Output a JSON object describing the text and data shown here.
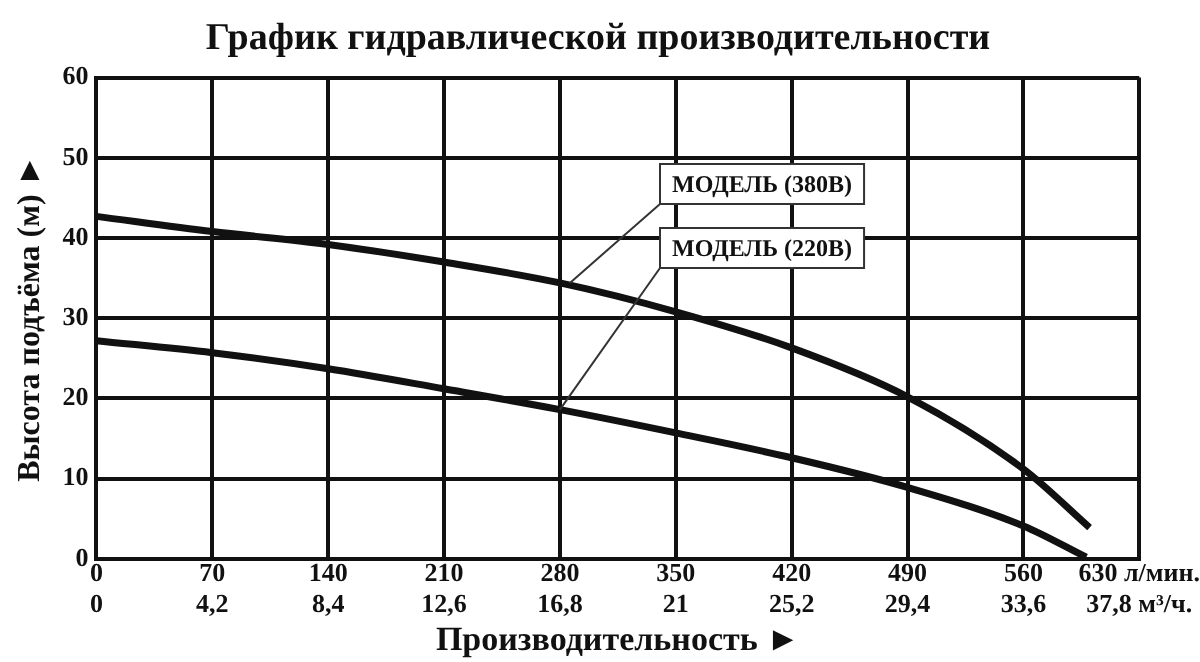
{
  "chart_data": {
    "type": "line",
    "title": "График гидравлической производительности",
    "xlabel": "Производительность ►",
    "ylabel": "Высота подъёма (м) ►",
    "x": [
      0,
      70,
      140,
      210,
      280,
      350,
      420,
      490,
      560,
      598
    ],
    "series": [
      {
        "name": "МОДЕЛЬ (380В)",
        "color": "#111111",
        "x": [
          0,
          70,
          140,
          210,
          280,
          350,
          420,
          490,
          560,
          600
        ],
        "values": [
          42.7,
          40.8,
          39.2,
          37,
          34.4,
          30.8,
          26.3,
          20.2,
          11.2,
          3.9
        ]
      },
      {
        "name": "МОДЕЛЬ (220В)",
        "color": "#111111",
        "values": [
          27.2,
          25.7,
          23.7,
          21.2,
          18.6,
          15.7,
          12.6,
          8.9,
          4.1,
          0.2
        ]
      }
    ],
    "xlim": [
      0,
      630
    ],
    "xticks": [
      0,
      70,
      140,
      210,
      280,
      350,
      420,
      490,
      560,
      {
        "value": 630,
        "label": "630 л/мин."
      }
    ],
    "x2lim": [
      0,
      37.8
    ],
    "x2ticks": [
      0,
      {
        "value": 4.2,
        "label": "4,2"
      },
      {
        "value": 8.4,
        "label": "8,4"
      },
      {
        "value": 12.6,
        "label": "12,6"
      },
      {
        "value": 16.8,
        "label": "16,8"
      },
      21,
      {
        "value": 25.2,
        "label": "25,2"
      },
      {
        "value": 29.4,
        "label": "29,4"
      },
      {
        "value": 33.6,
        "label": "33,6"
      },
      {
        "value": 37.8,
        "label": "37,8 м³/ч."
      }
    ],
    "ylim": [
      0,
      60
    ],
    "yticks": [
      0,
      10,
      20,
      30,
      40,
      50,
      60
    ],
    "grid": true,
    "legend": false,
    "marker": "none",
    "line_style": "solid"
  }
}
